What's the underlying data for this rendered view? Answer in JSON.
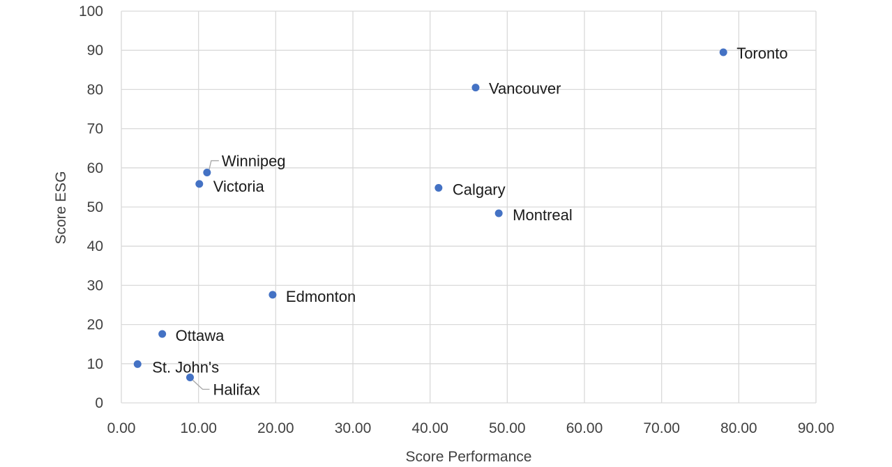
{
  "chart_data": {
    "type": "scatter",
    "title": "",
    "xlabel": "Score Performance",
    "ylabel": "Score ESG",
    "xlim": [
      0,
      90
    ],
    "ylim": [
      0,
      100
    ],
    "x_ticks": [
      "0.00",
      "10.00",
      "20.00",
      "30.00",
      "40.00",
      "50.00",
      "60.00",
      "70.00",
      "80.00",
      "90.00"
    ],
    "y_ticks": [
      "0",
      "10",
      "20",
      "30",
      "40",
      "50",
      "60",
      "70",
      "80",
      "90",
      "100"
    ],
    "grid": true,
    "marker_color": "#4472c4",
    "points": [
      {
        "label": "Toronto",
        "x": 78.0,
        "y": 89.5
      },
      {
        "label": "Vancouver",
        "x": 45.9,
        "y": 80.5
      },
      {
        "label": "Winnipeg",
        "x": 11.1,
        "y": 58.8
      },
      {
        "label": "Victoria",
        "x": 10.1,
        "y": 55.9
      },
      {
        "label": "Calgary",
        "x": 41.1,
        "y": 54.9
      },
      {
        "label": "Montreal",
        "x": 48.9,
        "y": 48.4
      },
      {
        "label": "Edmonton",
        "x": 19.6,
        "y": 27.6
      },
      {
        "label": "Ottawa",
        "x": 5.3,
        "y": 17.6
      },
      {
        "label": "St. John's",
        "x": 2.1,
        "y": 9.9
      },
      {
        "label": "Halifax",
        "x": 8.9,
        "y": 6.5
      }
    ]
  }
}
